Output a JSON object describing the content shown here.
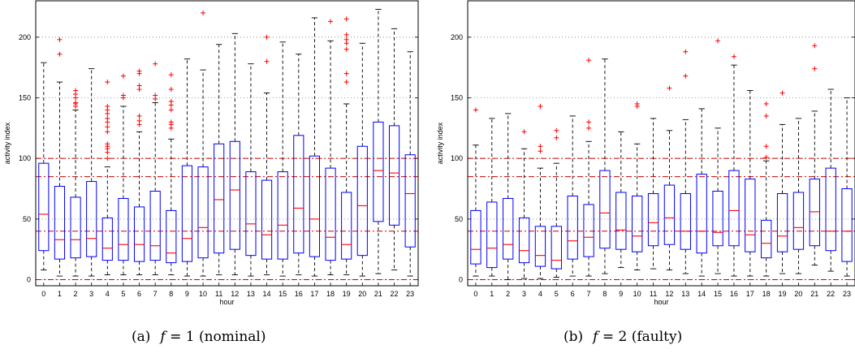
{
  "chart_data": [
    {
      "type": "box",
      "caption_label": "(a)",
      "caption_var": "f",
      "caption_eq": " = 1 (nominal)",
      "xlabel": "hour",
      "ylabel": "activity index",
      "ylim": [
        -5,
        230
      ],
      "yticks": [
        0,
        50,
        100,
        150,
        200
      ],
      "grid_y": true,
      "ref_lines": [
        0,
        40,
        85,
        100
      ],
      "categories": [
        "0",
        "1",
        "2",
        "3",
        "4",
        "5",
        "6",
        "7",
        "8",
        "9",
        "10",
        "11",
        "12",
        "13",
        "14",
        "15",
        "16",
        "17",
        "18",
        "19",
        "20",
        "21",
        "22",
        "23"
      ],
      "boxes": [
        {
          "q1": 24,
          "med": 54,
          "q3": 96,
          "wlo": 8,
          "whi": 179,
          "out": []
        },
        {
          "q1": 17,
          "med": 33,
          "q3": 77,
          "wlo": 3,
          "whi": 163,
          "out": [
            186,
            198
          ]
        },
        {
          "q1": 18,
          "med": 33,
          "q3": 68,
          "wlo": 3,
          "whi": 140,
          "out": [
            143,
            145,
            146,
            150,
            153,
            156
          ]
        },
        {
          "q1": 19,
          "med": 34,
          "q3": 81,
          "wlo": 3,
          "whi": 174,
          "out": []
        },
        {
          "q1": 16,
          "med": 26,
          "q3": 51,
          "wlo": 4,
          "whi": 93,
          "out": [
            100,
            105,
            108,
            110,
            112,
            122,
            126,
            130,
            133,
            137,
            140,
            143,
            163
          ]
        },
        {
          "q1": 16,
          "med": 29,
          "q3": 67,
          "wlo": 4,
          "whi": 143,
          "out": [
            150,
            152,
            168
          ]
        },
        {
          "q1": 15,
          "med": 29,
          "q3": 60,
          "wlo": 4,
          "whi": 122,
          "out": [
            128,
            131,
            135,
            157,
            160,
            170,
            172
          ]
        },
        {
          "q1": 16,
          "med": 28,
          "q3": 73,
          "wlo": 4,
          "whi": 146,
          "out": [
            149,
            152,
            178
          ]
        },
        {
          "q1": 14,
          "med": 22,
          "q3": 57,
          "wlo": 4,
          "whi": 116,
          "out": [
            125,
            128,
            130,
            140,
            144,
            147,
            157,
            169
          ]
        },
        {
          "q1": 15,
          "med": 34,
          "q3": 94,
          "wlo": 3,
          "whi": 182,
          "out": []
        },
        {
          "q1": 18,
          "med": 43,
          "q3": 93,
          "wlo": 3,
          "whi": 173,
          "out": [
            220
          ]
        },
        {
          "q1": 22,
          "med": 66,
          "q3": 112,
          "wlo": 4,
          "whi": 194,
          "out": []
        },
        {
          "q1": 25,
          "med": 74,
          "q3": 114,
          "wlo": 4,
          "whi": 203,
          "out": []
        },
        {
          "q1": 20,
          "med": 46,
          "q3": 89,
          "wlo": 3,
          "whi": 178,
          "out": []
        },
        {
          "q1": 17,
          "med": 37,
          "q3": 82,
          "wlo": 4,
          "whi": 154,
          "out": [
            180,
            200
          ]
        },
        {
          "q1": 17,
          "med": 45,
          "q3": 89,
          "wlo": 3,
          "whi": 196,
          "out": []
        },
        {
          "q1": 22,
          "med": 59,
          "q3": 119,
          "wlo": 4,
          "whi": 186,
          "out": []
        },
        {
          "q1": 19,
          "med": 50,
          "q3": 102,
          "wlo": 3,
          "whi": 216,
          "out": []
        },
        {
          "q1": 16,
          "med": 35,
          "q3": 92,
          "wlo": 4,
          "whi": 197,
          "out": [
            213
          ]
        },
        {
          "q1": 17,
          "med": 29,
          "q3": 72,
          "wlo": 4,
          "whi": 145,
          "out": [
            163,
            170,
            190,
            195,
            198,
            202,
            215
          ]
        },
        {
          "q1": 20,
          "med": 61,
          "q3": 110,
          "wlo": 3,
          "whi": 195,
          "out": []
        },
        {
          "q1": 48,
          "med": 90,
          "q3": 130,
          "wlo": 5,
          "whi": 223,
          "out": []
        },
        {
          "q1": 45,
          "med": 88,
          "q3": 127,
          "wlo": 8,
          "whi": 207,
          "out": []
        },
        {
          "q1": 27,
          "med": 71,
          "q3": 103,
          "wlo": 3,
          "whi": 188,
          "out": []
        }
      ]
    },
    {
      "type": "box",
      "caption_label": "(b)",
      "caption_var": "f",
      "caption_eq": " = 2 (faulty)",
      "xlabel": "hour",
      "ylabel": "activity index",
      "ylim": [
        -5,
        230
      ],
      "yticks": [
        0,
        50,
        100,
        150,
        200
      ],
      "grid_y": true,
      "ref_lines": [
        0,
        40,
        85,
        100
      ],
      "categories": [
        "0",
        "1",
        "2",
        "3",
        "4",
        "5",
        "6",
        "7",
        "8",
        "9",
        "10",
        "11",
        "12",
        "13",
        "14",
        "15",
        "16",
        "17",
        "18",
        "19",
        "20",
        "21",
        "22",
        "23"
      ],
      "boxes": [
        {
          "q1": 13,
          "med": 25,
          "q3": 57,
          "wlo": 3,
          "whi": 111,
          "out": [
            140
          ]
        },
        {
          "q1": 10,
          "med": 26,
          "q3": 64,
          "wlo": 3,
          "whi": 133,
          "out": []
        },
        {
          "q1": 17,
          "med": 29,
          "q3": 67,
          "wlo": 0,
          "whi": 137,
          "out": []
        },
        {
          "q1": 14,
          "med": 24,
          "q3": 51,
          "wlo": 1,
          "whi": 108,
          "out": [
            122
          ]
        },
        {
          "q1": 11,
          "med": 20,
          "q3": 44,
          "wlo": 1,
          "whi": 92,
          "out": [
            106,
            110,
            143
          ]
        },
        {
          "q1": 9,
          "med": 16,
          "q3": 44,
          "wlo": 2,
          "whi": 96,
          "out": [
            117,
            123
          ]
        },
        {
          "q1": 17,
          "med": 32,
          "q3": 69,
          "wlo": 3,
          "whi": 135,
          "out": []
        },
        {
          "q1": 19,
          "med": 35,
          "q3": 62,
          "wlo": 3,
          "whi": 114,
          "out": [
            125,
            130,
            181
          ]
        },
        {
          "q1": 26,
          "med": 55,
          "q3": 90,
          "wlo": 5,
          "whi": 182,
          "out": []
        },
        {
          "q1": 25,
          "med": 41,
          "q3": 72,
          "wlo": 10,
          "whi": 122,
          "out": []
        },
        {
          "q1": 23,
          "med": 36,
          "q3": 69,
          "wlo": 8,
          "whi": 112,
          "out": [
            143,
            145
          ]
        },
        {
          "q1": 28,
          "med": 47,
          "q3": 71,
          "wlo": 9,
          "whi": 133,
          "out": []
        },
        {
          "q1": 29,
          "med": 51,
          "q3": 78,
          "wlo": 8,
          "whi": 123,
          "out": [
            158
          ]
        },
        {
          "q1": 25,
          "med": 40,
          "q3": 71,
          "wlo": 5,
          "whi": 132,
          "out": [
            168,
            188
          ]
        },
        {
          "q1": 22,
          "med": 40,
          "q3": 87,
          "wlo": 3,
          "whi": 141,
          "out": []
        },
        {
          "q1": 28,
          "med": 39,
          "q3": 73,
          "wlo": 5,
          "whi": 125,
          "out": [
            197
          ]
        },
        {
          "q1": 28,
          "med": 57,
          "q3": 90,
          "wlo": 3,
          "whi": 177,
          "out": [
            184
          ]
        },
        {
          "q1": 23,
          "med": 37,
          "q3": 83,
          "wlo": 3,
          "whi": 156,
          "out": []
        },
        {
          "q1": 18,
          "med": 30,
          "q3": 49,
          "wlo": 3,
          "whi": 98,
          "out": [
            101,
            110,
            135,
            145
          ]
        },
        {
          "q1": 23,
          "med": 36,
          "q3": 71,
          "wlo": 5,
          "whi": 128,
          "out": [
            154
          ]
        },
        {
          "q1": 25,
          "med": 43,
          "q3": 72,
          "wlo": 5,
          "whi": 133,
          "out": []
        },
        {
          "q1": 28,
          "med": 56,
          "q3": 83,
          "wlo": 12,
          "whi": 139,
          "out": [
            174,
            193
          ]
        },
        {
          "q1": 24,
          "med": 40,
          "q3": 92,
          "wlo": 7,
          "whi": 157,
          "out": []
        },
        {
          "q1": 15,
          "med": 40,
          "q3": 75,
          "wlo": 3,
          "whi": 150,
          "out": []
        }
      ]
    }
  ],
  "colors": {
    "box": "#0000ff",
    "median": "#ff0000",
    "outlier": "#ff0000",
    "ref": "#cc0000",
    "whisker": "#000000",
    "grid": "#7f7f7f"
  }
}
